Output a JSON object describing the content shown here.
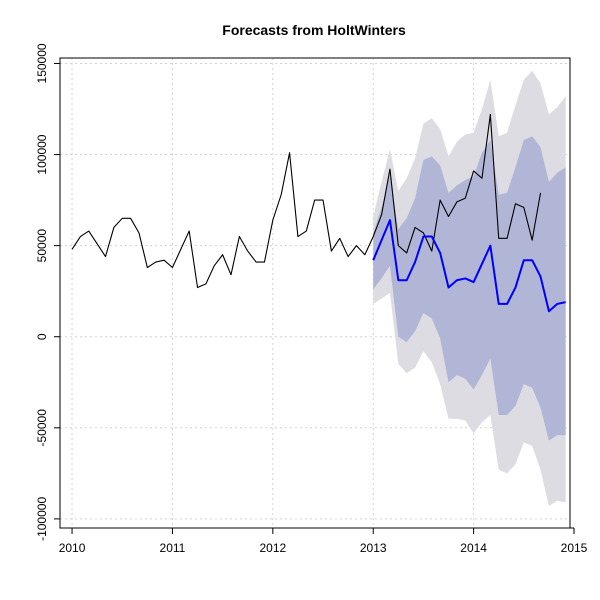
{
  "chart_data": {
    "type": "line",
    "title": "Forecasts from HoltWinters",
    "xlabel": "",
    "ylabel": "",
    "xlim": [
      2009.88,
      2014.96
    ],
    "ylim": [
      -105000,
      153000
    ],
    "grid": true,
    "x_ticks": [
      2010,
      2011,
      2012,
      2013,
      2014,
      2015
    ],
    "y_ticks": [
      -100000,
      -50000,
      0,
      50000,
      100000,
      150000
    ],
    "colors": {
      "observed": "#000000",
      "forecast": "#0000ff",
      "band80": "#b1b6d6",
      "band95": "#dcdce2",
      "grid": "#d3d3d3"
    },
    "series": [
      {
        "role": "observed",
        "x_start": 2010.0,
        "step": 0.08333,
        "values": [
          48000,
          55000,
          58000,
          51000,
          44000,
          60000,
          65000,
          65000,
          57000,
          38000,
          41000,
          42000,
          38000,
          48000,
          58000,
          27000,
          29000,
          39000,
          45000,
          34000,
          55000,
          47000,
          41000,
          41000,
          64000,
          78000,
          101000,
          55000,
          58000,
          75000,
          75000,
          47000,
          54000,
          44000,
          50000,
          45000,
          55000,
          67000,
          92000,
          50000,
          46000,
          60000,
          57000,
          47000,
          75000,
          66000,
          74000,
          76000,
          91000,
          87000,
          122000,
          54000,
          54000,
          73000,
          71000,
          53000,
          79000
        ]
      },
      {
        "role": "forecast",
        "x_start": 2013.0,
        "step": 0.08333,
        "values": [
          42000,
          53000,
          64000,
          31000,
          31000,
          41000,
          55000,
          55000,
          46000,
          27000,
          31000,
          32000,
          30000,
          40000,
          50000,
          18000,
          18000,
          27000,
          42000,
          42000,
          33000,
          14000,
          18000,
          19000
        ]
      }
    ],
    "intervals": {
      "x_start": 2013.0,
      "step": 0.08333,
      "lo80": [
        26000,
        32000,
        39000,
        0,
        -3000,
        3000,
        13000,
        10000,
        -1000,
        -25000,
        -21000,
        -23000,
        -29000,
        -21000,
        -12000,
        -43000,
        -43000,
        -38000,
        -26000,
        -28000,
        -39000,
        -57000,
        -54000,
        -54000
      ],
      "hi80": [
        57000,
        71000,
        89000,
        59000,
        65000,
        76000,
        97000,
        99000,
        94000,
        79000,
        83000,
        86000,
        88000,
        101000,
        108000,
        78000,
        79000,
        93000,
        108000,
        110000,
        104000,
        85000,
        90000,
        93000
      ],
      "lo95": [
        18000,
        21000,
        24000,
        -15000,
        -20000,
        -17000,
        -8000,
        -14000,
        -26000,
        -45000,
        -45000,
        -46000,
        -53000,
        -47000,
        -43000,
        -73000,
        -75000,
        -70000,
        -58000,
        -60000,
        -73000,
        -93000,
        -90000,
        -91000
      ],
      "hi95": [
        66000,
        85000,
        103000,
        80000,
        87000,
        98000,
        117000,
        120000,
        114000,
        99000,
        107000,
        111000,
        112000,
        125000,
        141000,
        110000,
        112000,
        127000,
        141000,
        146000,
        139000,
        122000,
        126000,
        132000
      ]
    }
  }
}
